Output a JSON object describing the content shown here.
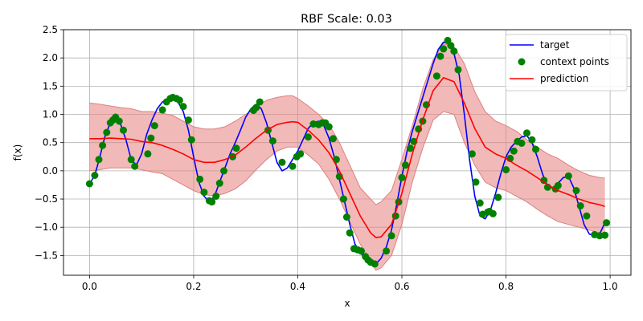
{
  "chart_data": {
    "type": "line",
    "title": "RBF Scale: 0.03",
    "xlabel": "x",
    "ylabel": "f(x)",
    "xlim": [
      -0.05,
      1.04
    ],
    "ylim": [
      -1.85,
      2.5
    ],
    "xticks": [
      0.0,
      0.2,
      0.4,
      0.6,
      0.8,
      1.0
    ],
    "xtick_labels": [
      "0.0",
      "0.2",
      "0.4",
      "0.6",
      "0.8",
      "1.0"
    ],
    "yticks": [
      -1.5,
      -1.0,
      -0.5,
      0.0,
      0.5,
      1.0,
      1.5,
      2.0,
      2.5
    ],
    "ytick_labels": [
      "−1.5",
      "−1.0",
      "−0.5",
      "0.0",
      "0.5",
      "1.0",
      "1.5",
      "2.0",
      "2.5"
    ],
    "grid": true,
    "legend_position": "top-right",
    "colors": {
      "target": "#0000ff",
      "context": "#008000",
      "prediction": "#ff0000",
      "band": "#e88080"
    },
    "series": [
      {
        "name": "target",
        "x": [
          0.0,
          0.01,
          0.02,
          0.03,
          0.04,
          0.05,
          0.06,
          0.07,
          0.08,
          0.09,
          0.1,
          0.11,
          0.12,
          0.13,
          0.14,
          0.15,
          0.16,
          0.17,
          0.18,
          0.19,
          0.2,
          0.21,
          0.22,
          0.23,
          0.24,
          0.25,
          0.26,
          0.27,
          0.28,
          0.29,
          0.3,
          0.31,
          0.32,
          0.33,
          0.34,
          0.35,
          0.36,
          0.37,
          0.38,
          0.39,
          0.4,
          0.41,
          0.42,
          0.43,
          0.44,
          0.45,
          0.46,
          0.47,
          0.48,
          0.49,
          0.5,
          0.51,
          0.52,
          0.53,
          0.54,
          0.55,
          0.56,
          0.57,
          0.58,
          0.59,
          0.6,
          0.61,
          0.62,
          0.63,
          0.64,
          0.65,
          0.66,
          0.67,
          0.68,
          0.69,
          0.7,
          0.71,
          0.72,
          0.73,
          0.74,
          0.75,
          0.76,
          0.77,
          0.78,
          0.79,
          0.8,
          0.81,
          0.82,
          0.83,
          0.84,
          0.85,
          0.86,
          0.87,
          0.88,
          0.89,
          0.9,
          0.91,
          0.92,
          0.93,
          0.94,
          0.95,
          0.96,
          0.97,
          0.98,
          0.99
        ],
        "values": [
          -0.23,
          -0.08,
          0.25,
          0.62,
          0.85,
          0.92,
          0.82,
          0.55,
          0.2,
          0.1,
          0.3,
          0.65,
          0.9,
          1.1,
          1.22,
          1.28,
          1.28,
          1.22,
          1.05,
          0.72,
          0.25,
          -0.2,
          -0.45,
          -0.55,
          -0.45,
          -0.2,
          0.05,
          0.3,
          0.5,
          0.72,
          0.95,
          1.1,
          1.18,
          1.1,
          0.85,
          0.5,
          0.15,
          0.0,
          0.05,
          0.2,
          0.35,
          0.55,
          0.75,
          0.85,
          0.88,
          0.8,
          0.58,
          0.25,
          -0.15,
          -0.55,
          -0.95,
          -1.3,
          -1.45,
          -1.55,
          -1.62,
          -1.65,
          -1.55,
          -1.35,
          -1.05,
          -0.6,
          -0.1,
          0.35,
          0.7,
          1.0,
          1.3,
          1.6,
          1.9,
          2.15,
          2.28,
          2.25,
          2.08,
          1.7,
          1.0,
          0.2,
          -0.45,
          -0.8,
          -0.85,
          -0.7,
          -0.4,
          -0.05,
          0.25,
          0.42,
          0.52,
          0.6,
          0.62,
          0.5,
          0.25,
          -0.05,
          -0.28,
          -0.3,
          -0.22,
          -0.12,
          -0.1,
          -0.3,
          -0.62,
          -0.95,
          -1.12,
          -1.15,
          -1.12,
          -0.92
        ]
      },
      {
        "name": "context points",
        "x": [
          0.0,
          0.01,
          0.018,
          0.025,
          0.033,
          0.04,
          0.045,
          0.05,
          0.057,
          0.065,
          0.08,
          0.087,
          0.112,
          0.118,
          0.125,
          0.14,
          0.148,
          0.155,
          0.16,
          0.167,
          0.173,
          0.18,
          0.19,
          0.196,
          0.212,
          0.22,
          0.23,
          0.235,
          0.243,
          0.25,
          0.258,
          0.275,
          0.282,
          0.315,
          0.32,
          0.327,
          0.343,
          0.352,
          0.37,
          0.39,
          0.398,
          0.405,
          0.42,
          0.43,
          0.44,
          0.447,
          0.453,
          0.46,
          0.468,
          0.474,
          0.48,
          0.488,
          0.494,
          0.5,
          0.508,
          0.515,
          0.522,
          0.53,
          0.535,
          0.54,
          0.548,
          0.57,
          0.58,
          0.588,
          0.594,
          0.6,
          0.607,
          0.616,
          0.623,
          0.632,
          0.64,
          0.647,
          0.667,
          0.674,
          0.68,
          0.688,
          0.694,
          0.7,
          0.708,
          0.735,
          0.742,
          0.75,
          0.755,
          0.765,
          0.768,
          0.775,
          0.785,
          0.8,
          0.808,
          0.815,
          0.822,
          0.83,
          0.84,
          0.85,
          0.857,
          0.873,
          0.88,
          0.895,
          0.9,
          0.92,
          0.935,
          0.943,
          0.955,
          0.97,
          0.98,
          0.99,
          0.993
        ],
        "values": [
          -0.23,
          -0.08,
          0.2,
          0.45,
          0.68,
          0.85,
          0.9,
          0.95,
          0.88,
          0.72,
          0.2,
          0.08,
          0.3,
          0.58,
          0.8,
          1.08,
          1.22,
          1.28,
          1.3,
          1.28,
          1.25,
          1.14,
          0.9,
          0.55,
          -0.15,
          -0.38,
          -0.53,
          -0.55,
          -0.45,
          -0.22,
          0.0,
          0.25,
          0.4,
          1.07,
          1.12,
          1.22,
          0.72,
          0.53,
          0.15,
          0.08,
          0.25,
          0.3,
          0.6,
          0.83,
          0.82,
          0.85,
          0.85,
          0.78,
          0.57,
          0.2,
          -0.1,
          -0.5,
          -0.82,
          -1.1,
          -1.38,
          -1.4,
          -1.42,
          -1.52,
          -1.58,
          -1.62,
          -1.65,
          -1.42,
          -1.15,
          -0.8,
          -0.55,
          -0.12,
          0.1,
          0.4,
          0.52,
          0.74,
          0.88,
          1.17,
          1.68,
          2.03,
          2.16,
          2.31,
          2.22,
          2.12,
          1.79,
          0.3,
          -0.2,
          -0.57,
          -0.77,
          -0.73,
          -0.72,
          -0.76,
          -0.47,
          0.02,
          0.22,
          0.35,
          0.52,
          0.49,
          0.67,
          0.55,
          0.38,
          -0.17,
          -0.29,
          -0.32,
          -0.26,
          -0.09,
          -0.35,
          -0.62,
          -0.8,
          -1.13,
          -1.15,
          -1.14,
          -0.92
        ]
      },
      {
        "name": "prediction",
        "x": [
          0.0,
          0.02,
          0.04,
          0.06,
          0.08,
          0.1,
          0.12,
          0.14,
          0.16,
          0.18,
          0.2,
          0.22,
          0.24,
          0.26,
          0.28,
          0.3,
          0.32,
          0.34,
          0.36,
          0.38,
          0.39,
          0.4,
          0.42,
          0.44,
          0.46,
          0.48,
          0.5,
          0.52,
          0.54,
          0.55,
          0.56,
          0.58,
          0.6,
          0.62,
          0.64,
          0.66,
          0.68,
          0.7,
          0.72,
          0.74,
          0.76,
          0.78,
          0.8,
          0.82,
          0.84,
          0.86,
          0.88,
          0.9,
          0.92,
          0.94,
          0.96,
          0.98,
          0.99
        ],
        "values": [
          0.57,
          0.57,
          0.58,
          0.57,
          0.56,
          0.52,
          0.5,
          0.45,
          0.38,
          0.3,
          0.2,
          0.15,
          0.15,
          0.2,
          0.28,
          0.42,
          0.58,
          0.72,
          0.82,
          0.86,
          0.87,
          0.86,
          0.72,
          0.55,
          0.32,
          0.0,
          -0.4,
          -0.8,
          -1.1,
          -1.18,
          -1.17,
          -0.95,
          -0.4,
          0.3,
          0.9,
          1.42,
          1.65,
          1.58,
          1.2,
          0.75,
          0.42,
          0.3,
          0.22,
          0.1,
          0.0,
          -0.12,
          -0.25,
          -0.35,
          -0.42,
          -0.5,
          -0.56,
          -0.6,
          -0.63
        ]
      }
    ],
    "uncertainty_band": {
      "x": [
        0.0,
        0.02,
        0.04,
        0.06,
        0.08,
        0.1,
        0.12,
        0.14,
        0.16,
        0.18,
        0.2,
        0.22,
        0.24,
        0.26,
        0.28,
        0.3,
        0.32,
        0.34,
        0.36,
        0.38,
        0.39,
        0.4,
        0.42,
        0.44,
        0.46,
        0.48,
        0.5,
        0.52,
        0.54,
        0.55,
        0.56,
        0.58,
        0.6,
        0.62,
        0.64,
        0.66,
        0.68,
        0.7,
        0.72,
        0.74,
        0.76,
        0.78,
        0.8,
        0.82,
        0.84,
        0.86,
        0.88,
        0.9,
        0.92,
        0.94,
        0.96,
        0.98,
        0.99
      ],
      "upper": [
        1.2,
        1.18,
        1.15,
        1.12,
        1.1,
        1.05,
        1.05,
        1.02,
        0.98,
        0.88,
        0.78,
        0.74,
        0.74,
        0.78,
        0.88,
        1.0,
        1.12,
        1.25,
        1.3,
        1.33,
        1.33,
        1.28,
        1.15,
        1.0,
        0.82,
        0.5,
        0.1,
        -0.3,
        -0.5,
        -0.6,
        -0.55,
        -0.35,
        0.2,
        0.8,
        1.45,
        1.97,
        2.25,
        2.2,
        1.9,
        1.4,
        1.05,
        0.88,
        0.8,
        0.7,
        0.55,
        0.42,
        0.3,
        0.22,
        0.1,
        0.0,
        -0.08,
        -0.12,
        -0.13
      ],
      "lower": [
        0.0,
        0.02,
        0.05,
        0.05,
        0.05,
        0.02,
        -0.02,
        -0.05,
        -0.15,
        -0.25,
        -0.35,
        -0.42,
        -0.45,
        -0.4,
        -0.32,
        -0.18,
        0.02,
        0.2,
        0.35,
        0.42,
        0.42,
        0.42,
        0.28,
        0.12,
        -0.15,
        -0.5,
        -0.9,
        -1.3,
        -1.6,
        -1.76,
        -1.72,
        -1.5,
        -0.95,
        -0.2,
        0.4,
        0.9,
        1.05,
        1.0,
        0.5,
        0.1,
        -0.2,
        -0.3,
        -0.35,
        -0.45,
        -0.55,
        -0.68,
        -0.8,
        -0.9,
        -0.95,
        -1.0,
        -1.05,
        -1.1,
        -1.12
      ]
    },
    "legend": [
      "target",
      "context points",
      "prediction"
    ]
  }
}
